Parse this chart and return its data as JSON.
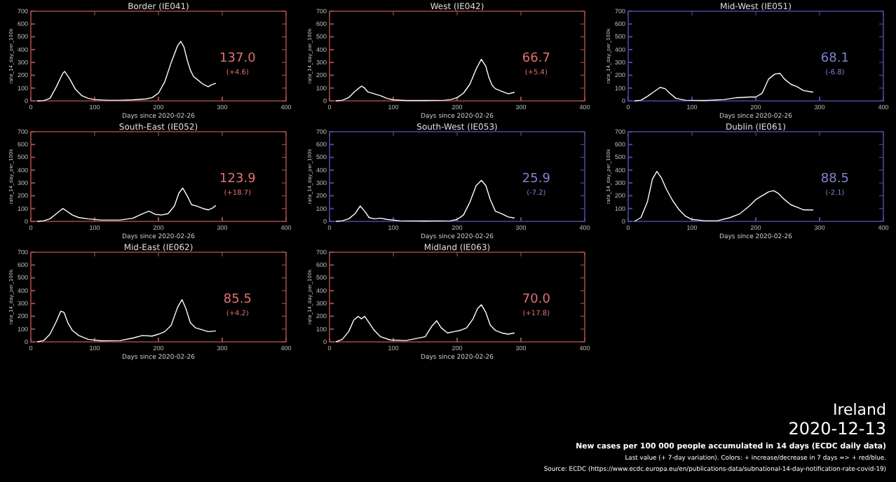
{
  "chart_data": [
    {
      "type": "line",
      "title": "Border (IE041)",
      "xlabel": "Days since 2020-02-26",
      "ylabel": "rate_14_day_per_100k",
      "xlim": [
        0,
        400
      ],
      "ylim": [
        0,
        700
      ],
      "xticks": [
        0,
        100,
        200,
        300,
        400
      ],
      "yticks": [
        0,
        100,
        200,
        300,
        400,
        500,
        600,
        700
      ],
      "annotations": [
        "137.0",
        "(+4.6)"
      ],
      "series": [
        {
          "color": "#ffffff",
          "x": [
            10,
            20,
            30,
            40,
            50,
            53,
            60,
            70,
            80,
            90,
            100,
            120,
            140,
            160,
            180,
            190,
            200,
            210,
            220,
            230,
            235,
            240,
            245,
            250,
            255,
            260,
            270,
            278,
            283,
            290
          ],
          "values": [
            0,
            2,
            20,
            110,
            215,
            230,
            180,
            90,
            40,
            20,
            10,
            5,
            5,
            8,
            15,
            25,
            60,
            150,
            300,
            430,
            465,
            420,
            320,
            240,
            190,
            170,
            130,
            110,
            125,
            137
          ]
        }
      ]
    },
    {
      "type": "line",
      "title": "West (IE042)",
      "xlabel": "Days since 2020-02-26",
      "ylabel": "rate_14_day_per_100k",
      "xlim": [
        0,
        400
      ],
      "ylim": [
        0,
        700
      ],
      "xticks": [
        0,
        100,
        200,
        300,
        400
      ],
      "yticks": [
        0,
        100,
        200,
        300,
        400,
        500,
        600,
        700
      ],
      "annotations": [
        "66.7",
        "(+5.4)"
      ],
      "series": [
        {
          "color": "#ffffff",
          "x": [
            10,
            20,
            30,
            40,
            50,
            55,
            60,
            70,
            80,
            90,
            100,
            120,
            150,
            180,
            190,
            200,
            210,
            220,
            230,
            238,
            245,
            250,
            255,
            260,
            270,
            280,
            290
          ],
          "values": [
            0,
            5,
            25,
            75,
            115,
            100,
            70,
            55,
            40,
            20,
            8,
            3,
            3,
            5,
            10,
            25,
            60,
            130,
            250,
            325,
            270,
            180,
            120,
            95,
            75,
            55,
            66.7
          ]
        }
      ]
    },
    {
      "type": "line",
      "title": "Mid-West (IE051)",
      "xlabel": "Days since 2020-02-26",
      "ylabel": "rate_14_day_per_100k",
      "xlim": [
        0,
        400
      ],
      "ylim": [
        0,
        700
      ],
      "xticks": [
        0,
        100,
        200,
        300,
        400
      ],
      "yticks": [
        0,
        100,
        200,
        300,
        400,
        500,
        600,
        700
      ],
      "annotations": [
        "68.1",
        "(-6.8)"
      ],
      "series": [
        {
          "color": "#ffffff",
          "x": [
            10,
            20,
            30,
            40,
            50,
            58,
            65,
            75,
            90,
            120,
            150,
            170,
            190,
            200,
            210,
            220,
            230,
            238,
            245,
            255,
            265,
            275,
            290
          ],
          "values": [
            0,
            5,
            35,
            70,
            105,
            95,
            60,
            20,
            5,
            3,
            10,
            25,
            30,
            30,
            60,
            170,
            210,
            215,
            170,
            130,
            110,
            80,
            68.1
          ]
        }
      ]
    },
    {
      "type": "line",
      "title": "South-East (IE052)",
      "xlabel": "Days since 2020-02-26",
      "ylabel": "rate_14_day_per_100k",
      "xlim": [
        0,
        400
      ],
      "ylim": [
        0,
        700
      ],
      "xticks": [
        0,
        100,
        200,
        300,
        400
      ],
      "yticks": [
        0,
        100,
        200,
        300,
        400,
        500,
        600,
        700
      ],
      "annotations": [
        "123.9",
        "(+18.7)"
      ],
      "series": [
        {
          "color": "#ffffff",
          "x": [
            10,
            20,
            30,
            40,
            50,
            55,
            65,
            75,
            90,
            110,
            140,
            160,
            175,
            185,
            195,
            205,
            215,
            225,
            232,
            238,
            245,
            252,
            260,
            270,
            278,
            285,
            290
          ],
          "values": [
            0,
            5,
            20,
            60,
            100,
            85,
            50,
            30,
            20,
            10,
            10,
            25,
            60,
            80,
            55,
            50,
            60,
            120,
            220,
            260,
            200,
            130,
            120,
            100,
            90,
            105,
            123.9
          ]
        }
      ]
    },
    {
      "type": "line",
      "title": "South-West (IE053)",
      "xlabel": "Days since 2020-02-26",
      "ylabel": "rate_14_day_per_100k",
      "xlim": [
        0,
        400
      ],
      "ylim": [
        0,
        700
      ],
      "xticks": [
        0,
        100,
        200,
        300,
        400
      ],
      "yticks": [
        0,
        100,
        200,
        300,
        400,
        500,
        600,
        700
      ],
      "annotations": [
        "25.9",
        "(-7.2)"
      ],
      "series": [
        {
          "color": "#ffffff",
          "x": [
            10,
            20,
            30,
            40,
            48,
            55,
            62,
            70,
            80,
            90,
            110,
            150,
            190,
            200,
            210,
            220,
            230,
            238,
            245,
            252,
            260,
            270,
            280,
            290
          ],
          "values": [
            0,
            5,
            20,
            60,
            120,
            80,
            30,
            20,
            25,
            15,
            5,
            3,
            5,
            15,
            50,
            150,
            280,
            320,
            280,
            170,
            80,
            60,
            35,
            25.9
          ]
        }
      ]
    },
    {
      "type": "line",
      "title": "Dublin (IE061)",
      "xlabel": "Days since 2020-02-26",
      "ylabel": "rate_14_day_per_100k",
      "xlim": [
        0,
        400
      ],
      "ylim": [
        0,
        700
      ],
      "xticks": [
        0,
        100,
        200,
        300,
        400
      ],
      "yticks": [
        0,
        100,
        200,
        300,
        400,
        500,
        600,
        700
      ],
      "annotations": [
        "88.5",
        "(-2.1)"
      ],
      "series": [
        {
          "color": "#ffffff",
          "x": [
            10,
            20,
            30,
            38,
            45,
            52,
            60,
            70,
            80,
            90,
            100,
            120,
            140,
            160,
            175,
            190,
            200,
            210,
            220,
            228,
            235,
            245,
            255,
            265,
            275,
            290
          ],
          "values": [
            0,
            30,
            150,
            330,
            390,
            340,
            250,
            160,
            90,
            40,
            15,
            5,
            5,
            30,
            60,
            120,
            170,
            200,
            230,
            240,
            220,
            170,
            130,
            110,
            90,
            88.5
          ]
        }
      ]
    },
    {
      "type": "line",
      "title": "Mid-East (IE062)",
      "xlabel": "Days since 2020-02-26",
      "ylabel": "rate_14_day_per_100k",
      "xlim": [
        0,
        400
      ],
      "ylim": [
        0,
        700
      ],
      "xticks": [
        0,
        100,
        200,
        300,
        400
      ],
      "yticks": [
        0,
        100,
        200,
        300,
        400,
        500,
        600,
        700
      ],
      "annotations": [
        "85.5",
        "(+4.2)"
      ],
      "series": [
        {
          "color": "#ffffff",
          "x": [
            10,
            20,
            30,
            40,
            47,
            52,
            58,
            65,
            75,
            90,
            110,
            140,
            160,
            175,
            190,
            200,
            210,
            220,
            230,
            237,
            243,
            250,
            258,
            268,
            278,
            290
          ],
          "values": [
            0,
            10,
            60,
            160,
            240,
            230,
            150,
            90,
            50,
            20,
            8,
            10,
            30,
            50,
            45,
            60,
            80,
            130,
            270,
            330,
            260,
            150,
            110,
            95,
            80,
            85.5
          ]
        }
      ]
    },
    {
      "type": "line",
      "title": "Midland (IE063)",
      "xlabel": "Days since 2020-02-26",
      "ylabel": "rate_14_day_per_100k",
      "xlim": [
        0,
        400
      ],
      "ylim": [
        0,
        700
      ],
      "xticks": [
        0,
        100,
        200,
        300,
        400
      ],
      "yticks": [
        0,
        100,
        200,
        300,
        400,
        500,
        600,
        700
      ],
      "annotations": [
        "70.0",
        "(+17.8)"
      ],
      "series": [
        {
          "color": "#ffffff",
          "x": [
            10,
            20,
            30,
            38,
            45,
            50,
            55,
            62,
            70,
            80,
            95,
            120,
            150,
            160,
            168,
            175,
            185,
            195,
            205,
            215,
            225,
            232,
            238,
            245,
            252,
            260,
            270,
            280,
            290
          ],
          "values": [
            0,
            20,
            80,
            170,
            200,
            180,
            200,
            150,
            90,
            40,
            15,
            10,
            40,
            120,
            165,
            110,
            70,
            80,
            90,
            110,
            180,
            260,
            290,
            230,
            130,
            90,
            70,
            60,
            70
          ]
        }
      ]
    },
    {
      "type": "other",
      "title": "Ireland",
      "subtitle": "2020-12-13",
      "annotations": [
        "New cases per 100 000 people accumulated in 14 days (ECDC daily data)",
        "Last value (+ 7-day variation). Colors: + increase/decrease in 7 days => + red/blue.",
        "Source: ECDC (https://www.ecdc.europa.eu/en/publications-data/subnational-14-day-notification-rate-covid-19)"
      ]
    }
  ]
}
